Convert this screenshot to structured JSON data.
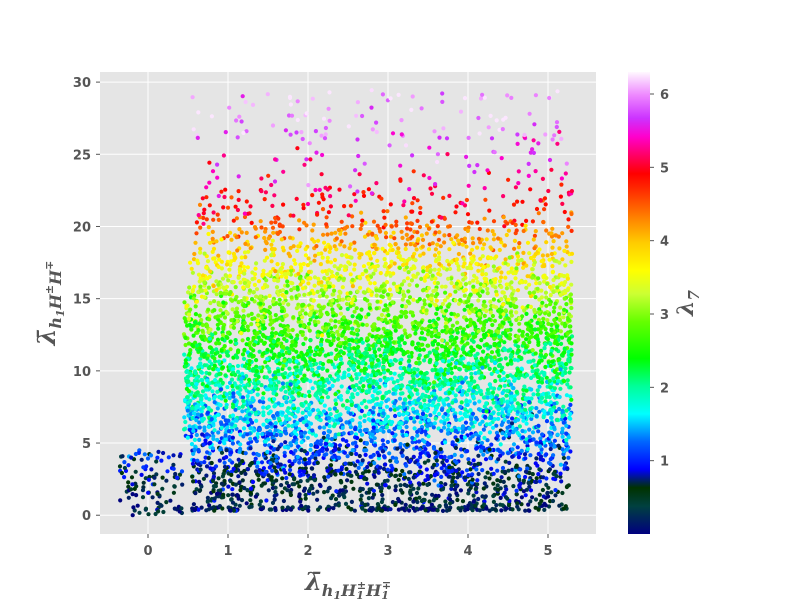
{
  "chart_data": {
    "type": "scatter",
    "title": "",
    "xlabel": {
      "base": "λ̄",
      "sub": "h",
      "sub2": "1",
      "rest": "H",
      "rest_sub": "1",
      "rest_sup": "±",
      "rest2": "H",
      "rest2_sub": "1",
      "rest2_sup": "∓"
    },
    "ylabel": {
      "base": "λ̄",
      "sub": "h",
      "sub2": "1",
      "rest": "H",
      "rest_sup": "±",
      "rest2": "H",
      "rest2_sup": "∓"
    },
    "colorbar_label": "λ",
    "colorbar_label_sub": "7",
    "xlim": [
      -0.6,
      5.6
    ],
    "ylim": [
      -1.3,
      30.7
    ],
    "colorbar_range": [
      0.0,
      6.3
    ],
    "x_ticks": [
      "0",
      "1",
      "2",
      "3",
      "4",
      "5"
    ],
    "y_ticks": [
      "0",
      "5",
      "10",
      "15",
      "20",
      "25",
      "30"
    ],
    "colorbar_ticks": [
      "1",
      "2",
      "3",
      "4",
      "5",
      "6"
    ],
    "grid": true,
    "colormap": "gist_ncar",
    "colormap_stops": [
      {
        "v": 0.0,
        "c": "#000080"
      },
      {
        "v": 0.06,
        "c": "#004040"
      },
      {
        "v": 0.1,
        "c": "#003300"
      },
      {
        "v": 0.14,
        "c": "#0000ff"
      },
      {
        "v": 0.2,
        "c": "#0066ff"
      },
      {
        "v": 0.26,
        "c": "#00ffff"
      },
      {
        "v": 0.32,
        "c": "#00ff99"
      },
      {
        "v": 0.38,
        "c": "#00ff00"
      },
      {
        "v": 0.46,
        "c": "#66ff00"
      },
      {
        "v": 0.52,
        "c": "#ccff33"
      },
      {
        "v": 0.57,
        "c": "#ffff00"
      },
      {
        "v": 0.63,
        "c": "#ffcc00"
      },
      {
        "v": 0.68,
        "c": "#ff8800"
      },
      {
        "v": 0.74,
        "c": "#ff3300"
      },
      {
        "v": 0.78,
        "c": "#ff0000"
      },
      {
        "v": 0.82,
        "c": "#ff0066"
      },
      {
        "v": 0.86,
        "c": "#ff00cc"
      },
      {
        "v": 0.9,
        "c": "#cc33ff"
      },
      {
        "v": 0.95,
        "c": "#ee88ff"
      },
      {
        "v": 1.0,
        "c": "#fff8ff"
      }
    ],
    "marker": "circle",
    "point_count": 6500,
    "distribution": {
      "x_range": [
        -0.35,
        5.3
      ],
      "y_range": [
        0.0,
        30.0
      ],
      "dense_region": {
        "x": [
          0.45,
          5.3
        ],
        "y": [
          0.3,
          27
        ]
      },
      "sparse_region": {
        "x": [
          -0.35,
          0.45
        ],
        "y": [
          0.0,
          4.5
        ]
      },
      "color_vs_y": [
        {
          "y": 0.5,
          "lambda7": 0.3
        },
        {
          "y": 2.0,
          "lambda7": 0.5
        },
        {
          "y": 4.0,
          "lambda7": 1.0
        },
        {
          "y": 6.5,
          "lambda7": 1.5
        },
        {
          "y": 10.0,
          "lambda7": 2.1
        },
        {
          "y": 14.0,
          "lambda7": 2.9
        },
        {
          "y": 17.5,
          "lambda7": 3.6
        },
        {
          "y": 21.0,
          "lambda7": 4.8
        },
        {
          "y": 24.0,
          "lambda7": 5.4
        },
        {
          "y": 28.0,
          "lambda7": 6.1
        }
      ]
    }
  }
}
